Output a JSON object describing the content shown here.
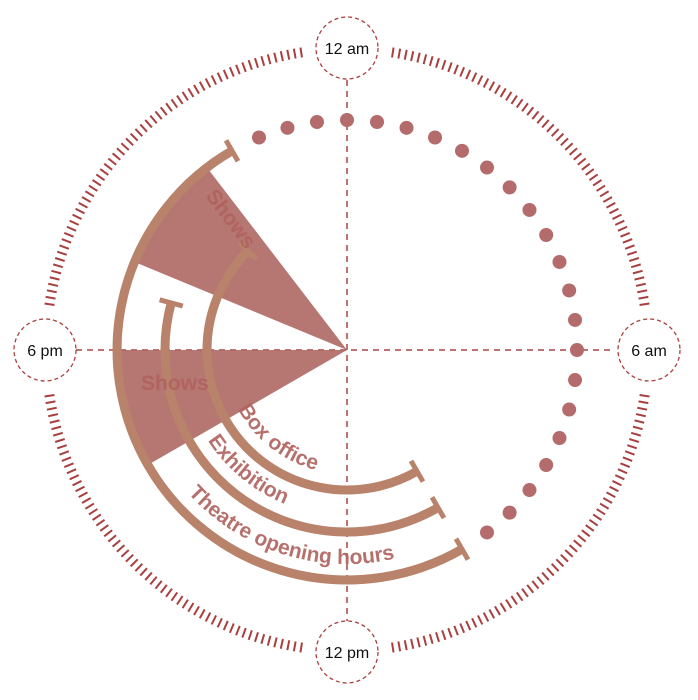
{
  "hour_labels": [
    {
      "hour": 0,
      "text": "12 am"
    },
    {
      "hour": 6,
      "text": "6 am"
    },
    {
      "hour": 12,
      "text": "12 pm"
    },
    {
      "hour": 18,
      "text": "6 pm"
    }
  ],
  "arcs": [
    {
      "label": "Theatre opening hours",
      "start_hour": 10,
      "end_hour": 22
    },
    {
      "label": "Exhibition",
      "start_hour": 10,
      "end_hour": 19
    },
    {
      "label": "Box office",
      "start_hour": 10,
      "end_hour": 21
    }
  ],
  "shows": [
    {
      "label": "Shows",
      "start_hour": 16,
      "end_hour": 18
    },
    {
      "label": "Shows",
      "start_hour": 19.5,
      "end_hour": 21.5
    }
  ],
  "closed_dots": {
    "start_hour": 22.5,
    "end_hour": 9.5,
    "step_hours": 0.5
  },
  "colors": {
    "ring": "#a8403f",
    "arc": "#b9826a",
    "wedge": "#b06a66",
    "dots": "#b36b6b",
    "axis": "#a84545"
  }
}
